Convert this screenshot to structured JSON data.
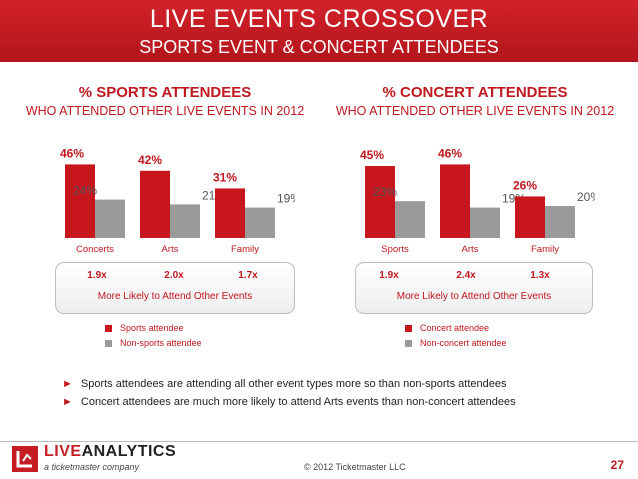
{
  "header": {
    "title": "LIVE EVENTS CROSSOVER",
    "subtitle": "SPORTS EVENT & CONCERT ATTENDEES"
  },
  "colors": {
    "accent": "#c0181e",
    "gray_bar": "#9a9a9a"
  },
  "sections": [
    {
      "title": "% SPORTS ATTENDEES",
      "subtitle": "WHO ATTENDED OTHER LIVE EVENTS IN 2012"
    },
    {
      "title": "% CONCERT ATTENDEES",
      "subtitle": "WHO ATTENDED OTHER LIVE EVENTS IN 2012"
    }
  ],
  "chart_data": [
    {
      "type": "bar",
      "title": "% SPORTS ATTENDEES",
      "categories": [
        "Concerts",
        "Arts",
        "Family"
      ],
      "series": [
        {
          "name": "Sports attendee",
          "values": [
            46,
            42,
            31
          ],
          "labels": [
            "46%",
            "42%",
            "31%"
          ],
          "color": "#c8161e"
        },
        {
          "name": "Non-sports attendee",
          "values": [
            24,
            21,
            19
          ],
          "labels": [
            "24%",
            "21%",
            "19%"
          ],
          "color": "#9a9a9a"
        }
      ],
      "multipliers": [
        "1.9x",
        "2.0x",
        "1.7x"
      ],
      "multiplier_caption": "More Likely to Attend Other Events",
      "ylim": [
        0,
        50
      ]
    },
    {
      "type": "bar",
      "title": "% CONCERT ATTENDEES",
      "categories": [
        "Sports",
        "Arts",
        "Family"
      ],
      "series": [
        {
          "name": "Concert attendee",
          "values": [
            45,
            46,
            26
          ],
          "labels": [
            "45%",
            "46%",
            "26%"
          ],
          "color": "#c8161e"
        },
        {
          "name": "Non-concert attendee",
          "values": [
            23,
            19,
            20
          ],
          "labels": [
            "23%",
            "19%",
            "20%"
          ],
          "color": "#9a9a9a"
        }
      ],
      "multipliers": [
        "1.9x",
        "2.4x",
        "1.3x"
      ],
      "multiplier_caption": "More Likely to Attend Other Events",
      "ylim": [
        0,
        50
      ]
    }
  ],
  "bullets": [
    "Sports attendees are attending all other event types more so than non-sports attendees",
    "Concert attendees are much more likely to attend Arts events than non-concert attendees"
  ],
  "footer": {
    "logo_live": "LIVE",
    "logo_analytics": "ANALYTICS",
    "logo_sub": "a ticketmaster company",
    "copyright": "© 2012 Ticketmaster LLC",
    "page_number": "27"
  }
}
